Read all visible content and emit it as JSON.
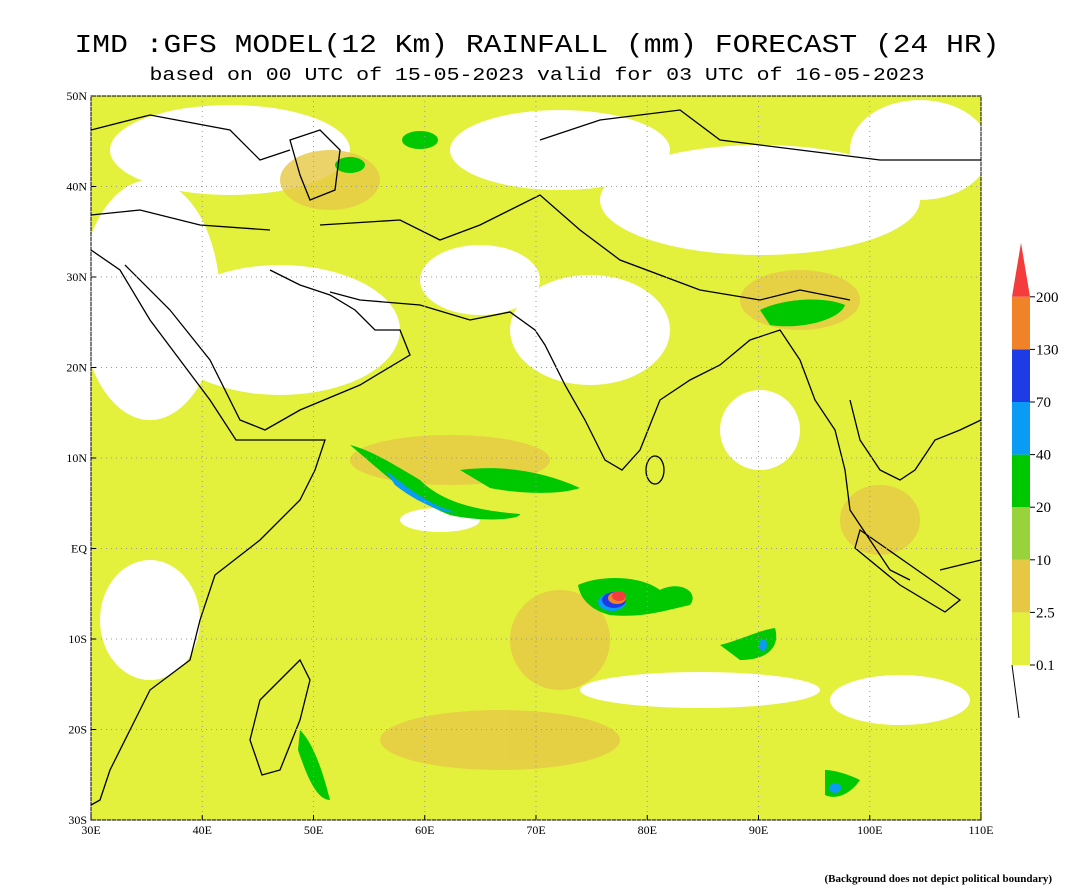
{
  "map": {
    "title": "IMD :GFS MODEL(12 Km) RAINFALL (mm) FORECAST (24 HR)",
    "subtitle": "based on 00 UTC of 15-05-2023 valid for 03 UTC of 16-05-2023",
    "lon_range": [
      30,
      110
    ],
    "lat_range": [
      -30,
      50
    ],
    "lon_ticks": [
      {
        "value": 30,
        "label": "30E"
      },
      {
        "value": 40,
        "label": "40E"
      },
      {
        "value": 50,
        "label": "50E"
      },
      {
        "value": 60,
        "label": "60E"
      },
      {
        "value": 70,
        "label": "70E"
      },
      {
        "value": 80,
        "label": "80E"
      },
      {
        "value": 90,
        "label": "90E"
      },
      {
        "value": 100,
        "label": "100E"
      },
      {
        "value": 110,
        "label": "110E"
      }
    ],
    "lat_ticks": [
      {
        "value": 50,
        "label": "50N"
      },
      {
        "value": 40,
        "label": "40N"
      },
      {
        "value": 30,
        "label": "30N"
      },
      {
        "value": 20,
        "label": "20N"
      },
      {
        "value": 10,
        "label": "10N"
      },
      {
        "value": 0,
        "label": "EQ"
      },
      {
        "value": -10,
        "label": "10S"
      },
      {
        "value": -20,
        "label": "20S"
      },
      {
        "value": -30,
        "label": "30S"
      }
    ],
    "legend": {
      "levels": [
        0.1,
        2.5,
        10,
        20,
        40,
        70,
        130,
        200
      ],
      "colors": [
        "#e3f03c",
        "#e6c845",
        "#98d23c",
        "#00c800",
        "#0a9cf5",
        "#1e3ce6",
        "#f08228",
        "#f53c3c"
      ]
    },
    "footnote": "(Background does not depict political boundary)"
  }
}
